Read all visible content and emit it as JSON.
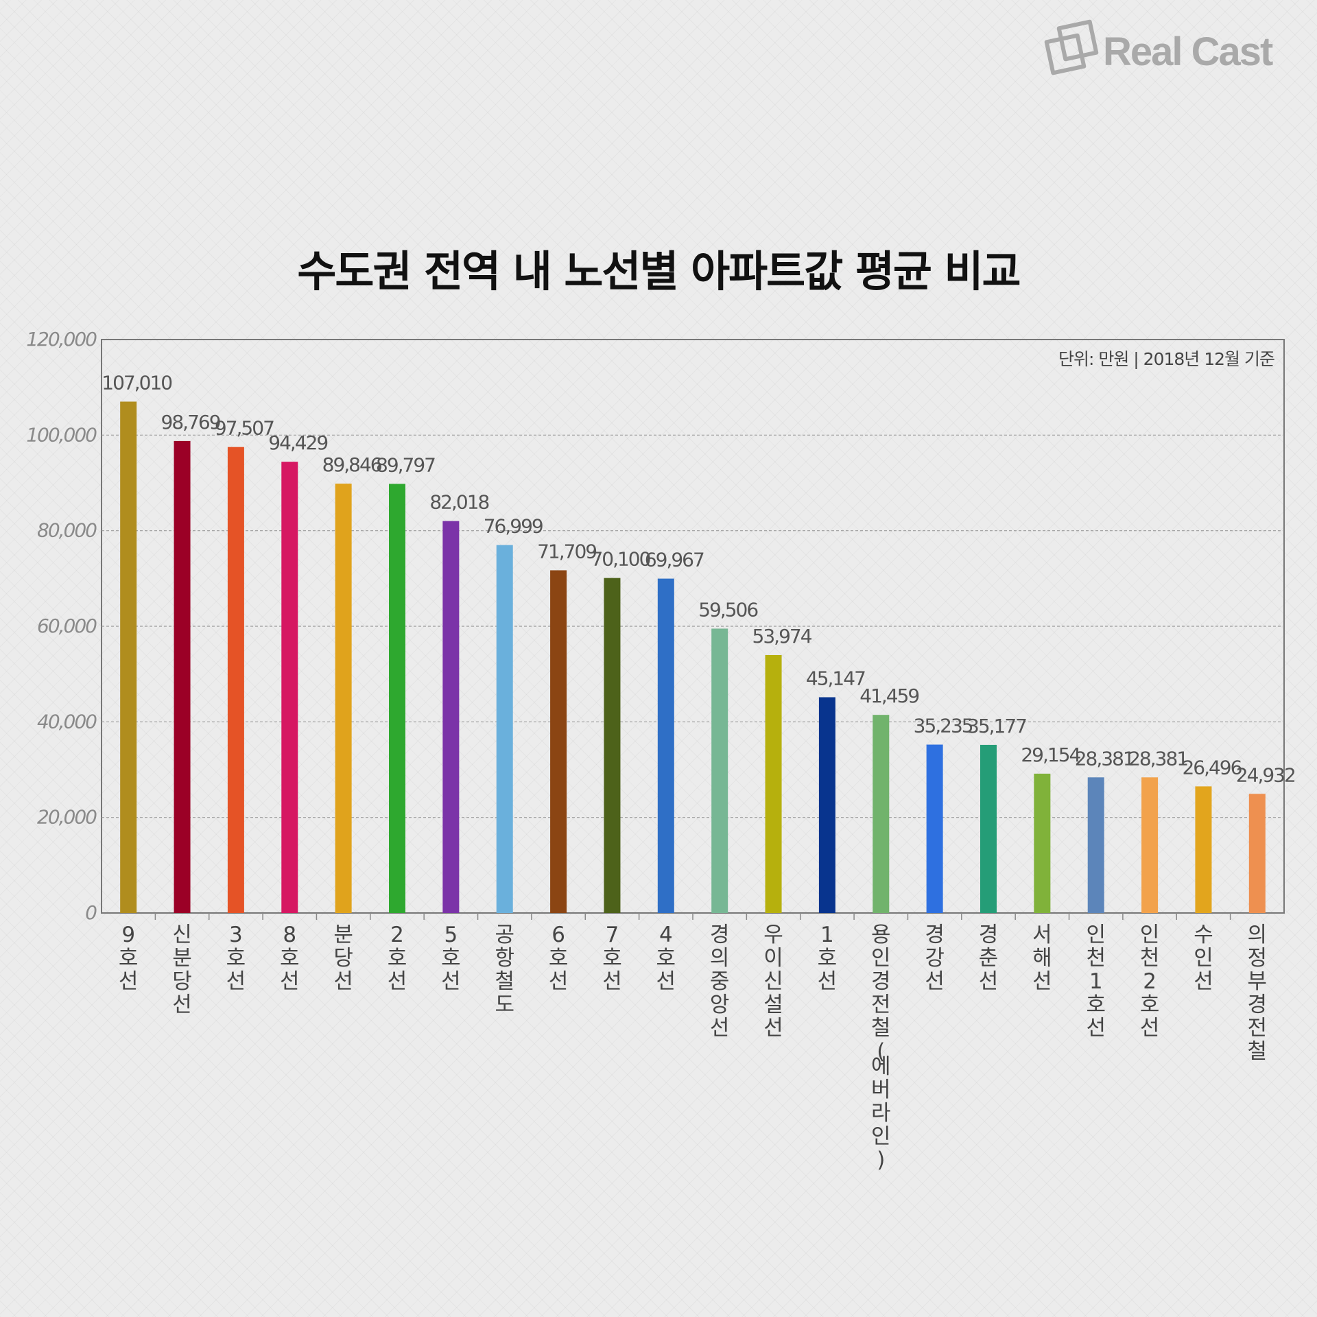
{
  "logo": {
    "text": "Real Cast"
  },
  "title": "수도권 전역 내 노선별 아파트값 평균 비교",
  "chart_data": {
    "type": "bar",
    "title": "수도권 전역 내 노선별 아파트값 평균 비교",
    "unit_note": "단위: 만원 | 2018년 12월 기준",
    "ylim": [
      0,
      120000
    ],
    "yticks": [
      "0",
      "20,000",
      "40,000",
      "60,000",
      "80,000",
      "100,000",
      "120,000"
    ],
    "ytick_values": [
      0,
      20000,
      40000,
      60000,
      80000,
      100000,
      120000
    ],
    "grid": true,
    "categories": [
      "9호선",
      "신분당선",
      "3호선",
      "8호선",
      "분당선",
      "2호선",
      "5호선",
      "공항철도",
      "6호선",
      "7호선",
      "4호선",
      "경의중앙선",
      "우이신설선",
      "1호선",
      "용인경전철(에버라인)",
      "경강선",
      "경춘선",
      "서해선",
      "인천1호선",
      "인천2호선",
      "수인선",
      "의정부경전철"
    ],
    "values": [
      107010,
      98769,
      97507,
      94429,
      89846,
      89797,
      82018,
      76999,
      71709,
      70100,
      69967,
      59506,
      53974,
      45147,
      41459,
      35235,
      35177,
      29154,
      28381,
      28381,
      26496,
      24932
    ],
    "labels": [
      "107,010",
      "98,769",
      "97,507",
      "94,429",
      "89,846",
      "89,797",
      "82,018",
      "76,999",
      "71,709",
      "70,100",
      "69,967",
      "59,506",
      "53,974",
      "45,147",
      "41,459",
      "35,235",
      "35,177",
      "29,154",
      "28,381",
      "28,381",
      "26,496",
      "24,932"
    ],
    "colors": [
      "#b08d1e",
      "#9b0026",
      "#e55326",
      "#d61762",
      "#e0a31c",
      "#2ea82f",
      "#7b33a8",
      "#6ab0dc",
      "#8b4513",
      "#4d621a",
      "#2f6fc6",
      "#77b794",
      "#b6b00d",
      "#08348e",
      "#71b36c",
      "#2e70e0",
      "#259d77",
      "#80b23a",
      "#5c85ba",
      "#f2a24c",
      "#e2a51d",
      "#ee9050"
    ]
  }
}
